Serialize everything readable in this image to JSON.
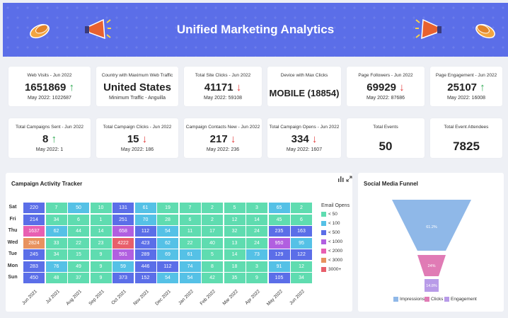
{
  "header": {
    "title": "Unified Marketing Analytics"
  },
  "kpis_row1": [
    {
      "label": "Web Visits - Jun 2022",
      "value": "1651869",
      "trend": "up",
      "sub": "May 2022: 1022687"
    },
    {
      "label": "Country with Maximum Web Traffic",
      "value": "United States",
      "trend": "",
      "sub": "Minimum Traffic - Anguilla"
    },
    {
      "label": "Total Site Clicks - Jun 2022",
      "value": "41171",
      "trend": "down",
      "sub": "May 2022: 59108"
    },
    {
      "label": "Device with Max Clicks",
      "value": "MOBILE (18854)",
      "trend": "",
      "sub": ""
    },
    {
      "label": "Page Followers - Jun 2022",
      "value": "69929",
      "trend": "down",
      "sub": "May 2022: 87686"
    },
    {
      "label": "Page Engagement - Jun 2022",
      "value": "25107",
      "trend": "up",
      "sub": "May 2022: 16008"
    }
  ],
  "kpis_row2": [
    {
      "label": "Total Campaigns Sent - Jun 2022",
      "value": "8",
      "trend": "up",
      "sub": "May 2022: 1"
    },
    {
      "label": "Total Campaign Clicks - Jun 2022",
      "value": "15",
      "trend": "down",
      "sub": "May 2022: 186"
    },
    {
      "label": "Campaign Contacts New - Jun 2022",
      "value": "217",
      "trend": "down",
      "sub": "May 2022: 236"
    },
    {
      "label": "Total Campaign Opens - Jun 2022",
      "value": "334",
      "trend": "down",
      "sub": "May 2022: 1607"
    },
    {
      "label": "Total Events",
      "value": "50",
      "trend": "",
      "sub": ""
    },
    {
      "label": "Total Event Attendees",
      "value": "7825",
      "trend": "",
      "sub": ""
    }
  ],
  "heatmap": {
    "title": "Campaign Activity Tracker",
    "rows": [
      "Sat",
      "Fri",
      "Thu",
      "Wed",
      "Tue",
      "Mon",
      "Sun"
    ],
    "cols": [
      "Jun 2021",
      "Jul 2021",
      "Aug 2021",
      "Sep 2021",
      "Oct 2021",
      "Nov 2021",
      "Dec 2021",
      "Jan 2022",
      "Feb 2022",
      "Mar 2022",
      "Apr 2022",
      "May 2022",
      "Jun 2022"
    ],
    "values": [
      [
        220,
        7,
        50,
        10,
        131,
        61,
        19,
        7,
        2,
        5,
        3,
        65,
        2
      ],
      [
        214,
        34,
        6,
        1,
        251,
        70,
        28,
        6,
        2,
        12,
        14,
        45,
        6
      ],
      [
        1637,
        62,
        44,
        14,
        658,
        112,
        54,
        11,
        17,
        32,
        24,
        235,
        163
      ],
      [
        2824,
        33,
        22,
        23,
        4222,
        423,
        62,
        22,
        40,
        13,
        24,
        950,
        95
      ],
      [
        245,
        34,
        15,
        9,
        591,
        289,
        69,
        61,
        5,
        14,
        73,
        129,
        122
      ],
      [
        283,
        76,
        49,
        9,
        59,
        446,
        112,
        74,
        8,
        18,
        3,
        91,
        12
      ],
      [
        450,
        48,
        37,
        9,
        373,
        152,
        54,
        54,
        42,
        35,
        9,
        105,
        34
      ]
    ],
    "legend_title": "Email Opens",
    "legend": [
      {
        "label": "< 50",
        "color": "#5fdcb0"
      },
      {
        "label": "< 100",
        "color": "#55c1e6"
      },
      {
        "label": "< 500",
        "color": "#5b6ee8"
      },
      {
        "label": "< 1000",
        "color": "#b15fe0"
      },
      {
        "label": "< 2000",
        "color": "#e85fb2"
      },
      {
        "label": "< 3000",
        "color": "#e8925f"
      },
      {
        "label": "3000+",
        "color": "#e85f6b"
      }
    ]
  },
  "funnel": {
    "title": "Social Media Funnel",
    "stages": [
      {
        "name": "Impressions",
        "label": "61.2%",
        "color": "#8fb8e8"
      },
      {
        "name": "Clicks",
        "label": "24%",
        "color": "#e07bb5"
      },
      {
        "name": "Engagement",
        "label": "14.8%",
        "color": "#b89be8"
      }
    ]
  },
  "icons": {
    "chart_type": "bar-chart-icon",
    "expand": "expand-icon"
  }
}
